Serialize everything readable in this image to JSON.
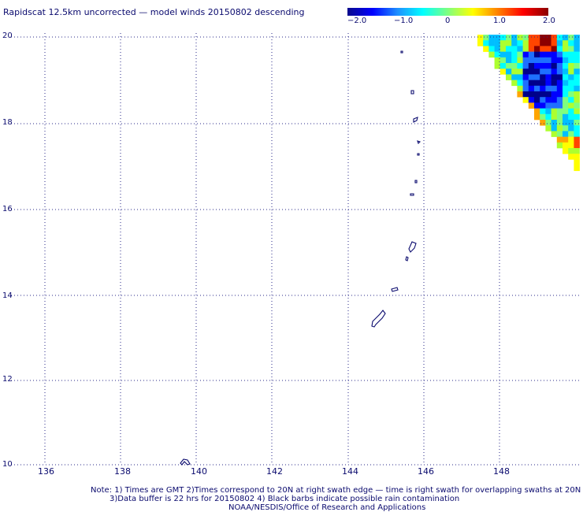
{
  "title": "Rapidscat 12.5km uncorrected — model winds 20150802 descending",
  "colorbar": {
    "ticks": [
      "−2.0",
      "−1.0",
      "0",
      "1.0",
      "2.0"
    ],
    "colors": [
      "#0a0a8c",
      "#0000ff",
      "#1e90ff",
      "#00ffff",
      "#7fff7f",
      "#ffff00",
      "#ff8000",
      "#ff0000",
      "#8b0000"
    ]
  },
  "map": {
    "lon_labels": [
      "136",
      "138",
      "140",
      "142",
      "144",
      "146",
      "148"
    ],
    "lat_labels": [
      "20",
      "18",
      "16",
      "14",
      "12",
      "10"
    ],
    "lon_range": [
      135.2,
      150.0
    ],
    "lat_range": [
      10,
      20
    ],
    "grid": true,
    "grid_color": "#2a2a8a",
    "coast_color": "#0a0a6e"
  },
  "notes": {
    "line1": "Note: 1) Times are GMT 2)Times correspond to 20N at right swath edge — time is right swath for overlapping swaths at 20N",
    "line2": "3)Data buffer is 22 hrs for 20150802 4) Black barbs indicate possible rain contamination",
    "line3": "NOAA/NESDIS/Office of Research and Applications"
  }
}
